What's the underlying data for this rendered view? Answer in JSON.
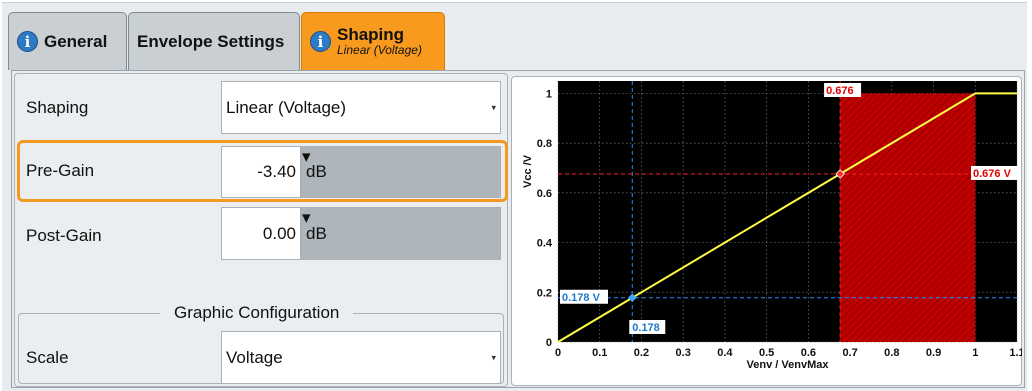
{
  "tabs": [
    {
      "label": "General",
      "info_icon": "i"
    },
    {
      "label": "Envelope Settings"
    },
    {
      "label": "Shaping",
      "sublabel": "Linear (Voltage)",
      "info_icon": "i"
    }
  ],
  "form": {
    "shaping": {
      "label": "Shaping",
      "value": "Linear (Voltage)"
    },
    "pre_gain": {
      "label": "Pre-Gain",
      "value": "-3.40",
      "unit": "dB"
    },
    "post_gain": {
      "label": "Post-Gain",
      "value": "0.00",
      "unit": "dB"
    },
    "graphic_config": {
      "title": "Graphic Configuration",
      "scale_label": "Scale",
      "scale_value": "Voltage"
    }
  },
  "colors": {
    "accent": "#f79a1e",
    "info": "#2d7bc7",
    "curve": "#ffff44",
    "clip": "#cc0000"
  },
  "chart_data": {
    "type": "line",
    "xlabel": "Venv / VenvMax",
    "ylabel": "Vcc /V",
    "xlim": [
      0,
      1.1
    ],
    "ylim": [
      0,
      1.05
    ],
    "x_ticks": [
      "0",
      "0.1",
      "0.2",
      "0.3",
      "0.4",
      "0.5",
      "0.6",
      "0.7",
      "0.8",
      "0.9",
      "1",
      "1.1"
    ],
    "y_ticks": [
      "0",
      "0.2",
      "0.4",
      "0.6",
      "0.8",
      "1"
    ],
    "grid": true,
    "series": [
      {
        "x": [
          0,
          0.676,
          1.0,
          1.1
        ],
        "y": [
          0,
          0.676,
          1.0,
          1.0
        ]
      }
    ],
    "markers": {
      "blue": {
        "x": 0.178,
        "y": 0.178,
        "x_label": "0.178",
        "y_label": "0.178 V"
      },
      "red": {
        "x": 0.676,
        "y": 0.676,
        "x_label": "0.676",
        "y_label": "0.676 V"
      }
    },
    "clip_region": {
      "x_from": 0.676,
      "x_to": 1.0
    }
  }
}
